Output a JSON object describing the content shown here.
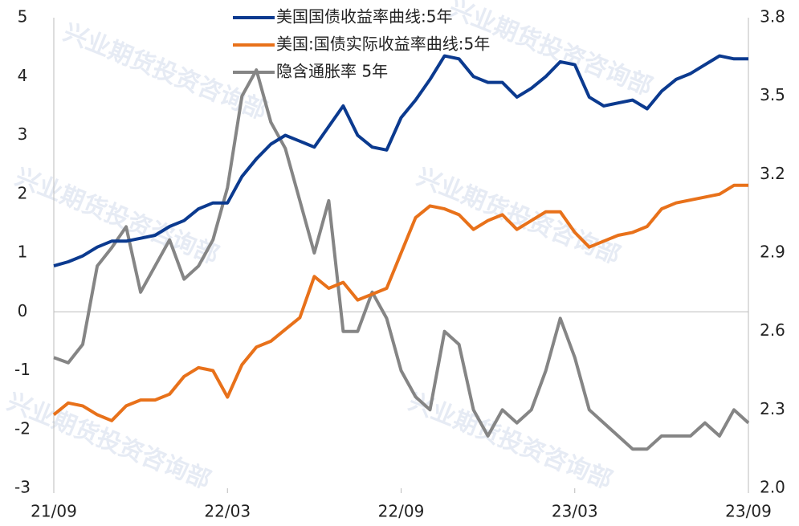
{
  "watermark": "兴业期货投资咨询部",
  "chart_data": {
    "type": "line",
    "categories": [
      "21/09",
      null,
      null,
      null,
      null,
      null,
      null,
      null,
      null,
      null,
      null,
      null,
      "22/03",
      null,
      null,
      null,
      null,
      null,
      null,
      null,
      null,
      null,
      null,
      null,
      "22/09",
      null,
      null,
      null,
      null,
      null,
      null,
      null,
      null,
      null,
      null,
      null,
      "23/03",
      null,
      null,
      null,
      null,
      null,
      null,
      null,
      null,
      null,
      null,
      null,
      "23/09"
    ],
    "series": [
      {
        "name": "美国国债收益率曲线:5年",
        "color": "#0b3a8f",
        "values": [
          0.78,
          0.85,
          0.95,
          1.1,
          1.2,
          1.2,
          1.25,
          1.3,
          1.45,
          1.55,
          1.75,
          1.85,
          1.85,
          2.3,
          2.6,
          2.85,
          3.0,
          2.9,
          2.8,
          3.15,
          3.5,
          3.0,
          2.8,
          2.75,
          3.3,
          3.6,
          3.95,
          4.35,
          4.3,
          4.0,
          3.9,
          3.9,
          3.65,
          3.8,
          4.0,
          4.25,
          4.2,
          3.65,
          3.5,
          3.55,
          3.6,
          3.45,
          3.75,
          3.95,
          4.05,
          4.2,
          4.35,
          4.3,
          4.3
        ]
      },
      {
        "name": "美国:国债实际收益率曲线:5年",
        "color": "#e8711a",
        "values": [
          -1.75,
          -1.55,
          -1.6,
          -1.75,
          -1.85,
          -1.6,
          -1.5,
          -1.5,
          -1.4,
          -1.1,
          -0.95,
          -1.0,
          -1.45,
          -0.9,
          -0.6,
          -0.5,
          -0.3,
          -0.1,
          0.6,
          0.4,
          0.5,
          0.2,
          0.3,
          0.4,
          1.0,
          1.6,
          1.8,
          1.75,
          1.65,
          1.4,
          1.55,
          1.65,
          1.4,
          1.55,
          1.7,
          1.7,
          1.35,
          1.1,
          1.2,
          1.3,
          1.35,
          1.45,
          1.75,
          1.85,
          1.9,
          1.95,
          2.0,
          2.15,
          2.15
        ]
      },
      {
        "name": "隐含通胀率 5年",
        "color": "#858585",
        "axis": "y2",
        "values": [
          2.5,
          2.48,
          2.55,
          2.85,
          2.92,
          3.0,
          2.75,
          2.85,
          2.95,
          2.8,
          2.85,
          2.95,
          3.15,
          3.5,
          3.6,
          3.4,
          3.3,
          3.1,
          2.9,
          3.1,
          2.6,
          2.6,
          2.75,
          2.65,
          2.45,
          2.35,
          2.3,
          2.6,
          2.55,
          2.3,
          2.2,
          2.3,
          2.25,
          2.3,
          2.45,
          2.65,
          2.5,
          2.3,
          2.25,
          2.2,
          2.15,
          2.15,
          2.2,
          2.2,
          2.2,
          2.25,
          2.2,
          2.3,
          2.25
        ]
      }
    ],
    "ylim": [
      -3,
      5
    ],
    "yticks": [
      -3,
      -2,
      -1,
      0,
      1,
      2,
      3,
      4,
      5
    ],
    "y2lim": [
      2,
      3.8
    ],
    "y2ticks": [
      {
        "value": 2,
        "label": "2.0"
      },
      2.3,
      2.6,
      2.9,
      3.2,
      3.5,
      3.8
    ],
    "legend": "top"
  }
}
